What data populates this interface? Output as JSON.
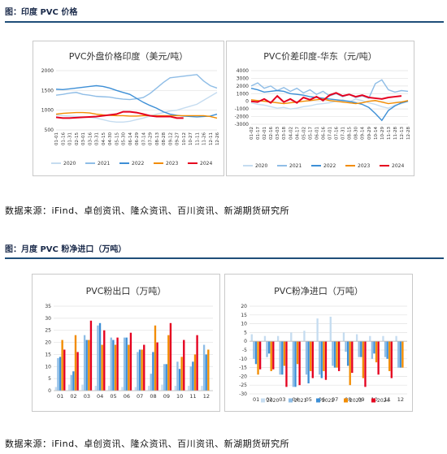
{
  "fig1_header": "图：印度 PVC 价格",
  "fig2_header": "图：月度 PVC 粉净进口（万吨）",
  "source_top": "数据来源：iFind、卓创资讯、隆众资讯、百川资讯、新湖期货研究所",
  "source_bottom": "数据来源：iFind、卓创资讯、隆众资讯、百川资讯、新湖期货研究所",
  "colors": {
    "2020": "#c5dcf0",
    "2021": "#8fbde6",
    "2022": "#3d8fd6",
    "2023": "#f28c00",
    "2024": "#e5001f",
    "rule": "#1f4e79"
  },
  "chart_data": [
    {
      "type": "line",
      "title": "PVC外盘价格印度（美元/吨）",
      "ylim": [
        500,
        2000
      ],
      "yticks": [
        500,
        1000,
        1500,
        2000
      ],
      "x_labels": [
        "01-01",
        "01-16",
        "01-31",
        "02-15",
        "03-01",
        "03-16",
        "03-31",
        "04-15",
        "04-30",
        "05-15",
        "05-30",
        "06-14",
        "06-29",
        "07-14",
        "07-29",
        "08-13",
        "08-28",
        "09-12",
        "09-27",
        "10-12",
        "10-27",
        "11-11",
        "11-26",
        "12-11",
        "12-26"
      ],
      "legend": [
        "2020",
        "2021",
        "2022",
        "2023",
        "2024"
      ],
      "grid": true,
      "series": [
        {
          "name": "2020",
          "values": [
            880,
            860,
            850,
            840,
            830,
            820,
            800,
            760,
            720,
            700,
            700,
            720,
            760,
            800,
            850,
            900,
            940,
            980,
            1000,
            1050,
            1100,
            1150,
            1250,
            1350,
            1450
          ]
        },
        {
          "name": "2021",
          "values": [
            1380,
            1400,
            1430,
            1450,
            1400,
            1380,
            1350,
            1340,
            1330,
            1300,
            1280,
            1270,
            1290,
            1320,
            1420,
            1560,
            1700,
            1820,
            1840,
            1860,
            1880,
            1900,
            1740,
            1620,
            1560
          ]
        },
        {
          "name": "2022",
          "values": [
            1530,
            1520,
            1540,
            1560,
            1580,
            1600,
            1620,
            1600,
            1560,
            1500,
            1450,
            1400,
            1300,
            1200,
            1120,
            1050,
            960,
            900,
            870,
            850,
            840,
            830,
            840,
            850,
            900
          ]
        },
        {
          "name": "2023",
          "values": [
            900,
            920,
            930,
            940,
            940,
            930,
            900,
            880,
            870,
            860,
            860,
            850,
            850,
            860,
            860,
            860,
            860,
            860,
            860,
            860,
            860,
            860,
            860,
            840,
            800
          ]
        },
        {
          "name": "2024",
          "values": [
            820,
            800,
            800,
            810,
            820,
            830,
            840,
            860,
            880,
            900,
            960,
            960,
            940,
            900,
            860,
            840,
            840,
            840,
            800,
            800
          ]
        }
      ]
    },
    {
      "type": "line",
      "title": "PVC价差印度-华东（元/吨）",
      "ylim": [
        -3000,
        4000
      ],
      "yticks": [
        -3000,
        -2000,
        -1000,
        0,
        1000,
        2000,
        3000,
        4000
      ],
      "x_labels": [
        "01-02",
        "01-17",
        "02-01",
        "02-16",
        "03-03",
        "03-18",
        "04-02",
        "04-17",
        "05-02",
        "05-17",
        "06-01",
        "06-16",
        "07-01",
        "07-16",
        "07-31",
        "08-15",
        "08-30",
        "09-14",
        "09-29",
        "10-14",
        "10-29",
        "11-13",
        "11-28",
        "12-13",
        "12-28"
      ],
      "legend": [
        "2020",
        "2021",
        "2022",
        "2023",
        "2024"
      ],
      "grid": true,
      "series": [
        {
          "name": "2020",
          "values": [
            -200,
            -400,
            -500,
            -700,
            -900,
            -800,
            -1000,
            -900,
            -700,
            -600,
            -400,
            -300,
            -200,
            0,
            200,
            -100,
            300,
            100,
            -200,
            -400,
            -700,
            -900,
            -500,
            -300,
            0
          ]
        },
        {
          "name": "2021",
          "values": [
            2000,
            2400,
            1700,
            2000,
            1400,
            1800,
            1300,
            1700,
            1100,
            1500,
            900,
            1300,
            700,
            1000,
            600,
            900,
            500,
            700,
            400,
            2300,
            2800,
            1500,
            1200,
            1400,
            1300
          ]
        },
        {
          "name": "2022",
          "values": [
            1700,
            1500,
            1200,
            1300,
            1400,
            1300,
            1000,
            900,
            800,
            600,
            500,
            400,
            300,
            200,
            100,
            0,
            -200,
            -400,
            -800,
            -1600,
            -2500,
            -1200,
            -600,
            -200,
            0
          ]
        },
        {
          "name": "2023",
          "values": [
            200,
            100,
            0,
            -100,
            -200,
            -300,
            -200,
            -100,
            0,
            100,
            200,
            300,
            100,
            0,
            -100,
            -200,
            -300,
            -200,
            0,
            100,
            -100,
            -300,
            -200,
            -100,
            100
          ]
        },
        {
          "name": "2024",
          "values": [
            0,
            -100,
            300,
            -200,
            700,
            -100,
            300,
            -200,
            500,
            200,
            600,
            100,
            800,
            1100,
            700,
            900,
            600,
            800,
            500,
            400,
            300,
            500,
            600,
            700
          ]
        }
      ]
    },
    {
      "type": "bar",
      "title": "PVC粉出口（万吨）",
      "ylim": [
        0,
        35
      ],
      "yticks": [
        0,
        5,
        10,
        15,
        20,
        25,
        30,
        35
      ],
      "categories": [
        "01",
        "02",
        "03",
        "04",
        "05",
        "06",
        "07",
        "08",
        "09",
        "10",
        "11",
        "12"
      ],
      "grid": true,
      "series": [
        {
          "name": "2020",
          "values": [
            1.5,
            2.5,
            2.5,
            2,
            2,
            1.5,
            1.5,
            2,
            2.5,
            2,
            2,
            2
          ]
        },
        {
          "name": "2021",
          "values": [
            13.5,
            6.5,
            23,
            27,
            22,
            22,
            16,
            7,
            11,
            12,
            10,
            19
          ]
        },
        {
          "name": "2022",
          "values": [
            14,
            8,
            21,
            28,
            21,
            22,
            17,
            16,
            11,
            9,
            12,
            15
          ]
        },
        {
          "name": "2023",
          "values": [
            21,
            23,
            21,
            19,
            19,
            19,
            17,
            27,
            23,
            14,
            15,
            17
          ]
        },
        {
          "name": "2024",
          "values": [
            17,
            16,
            29,
            25,
            22,
            24,
            19,
            20,
            28,
            21,
            23,
            0
          ]
        }
      ]
    },
    {
      "type": "bar",
      "title": "PVC粉净进口（万吨）",
      "ylim": [
        -30,
        20
      ],
      "yticks": [
        -30,
        -25,
        -20,
        -15,
        -10,
        -5,
        0,
        5,
        10,
        15,
        20
      ],
      "categories": [
        "01",
        "02",
        "03",
        "04",
        "05",
        "06",
        "07",
        "08",
        "09",
        "10",
        "11",
        "12"
      ],
      "legend": [
        "2020",
        "2021",
        "2022",
        "2023",
        "2024"
      ],
      "grid": true,
      "series": [
        {
          "name": "2020",
          "values": [
            4,
            3,
            3,
            5,
            6,
            13,
            14,
            5,
            4,
            3,
            3,
            3
          ]
        },
        {
          "name": "2021",
          "values": [
            -10,
            -9,
            -19,
            -26,
            -19,
            -19,
            -14,
            -6,
            -9,
            -10,
            -9,
            -15
          ]
        },
        {
          "name": "2022",
          "values": [
            -13,
            -7,
            -19,
            -26,
            -24,
            -21,
            -15,
            -14,
            -9,
            -7,
            -10,
            -15
          ]
        },
        {
          "name": "2023",
          "values": [
            -19,
            -17,
            -14,
            -13,
            -17,
            -17,
            -15,
            -25,
            -21,
            -12,
            -17,
            -15
          ]
        },
        {
          "name": "2024",
          "values": [
            -16,
            -16,
            -26,
            -25,
            -21,
            -22,
            -17,
            -18,
            -26,
            -19,
            -21,
            0
          ]
        }
      ]
    }
  ]
}
